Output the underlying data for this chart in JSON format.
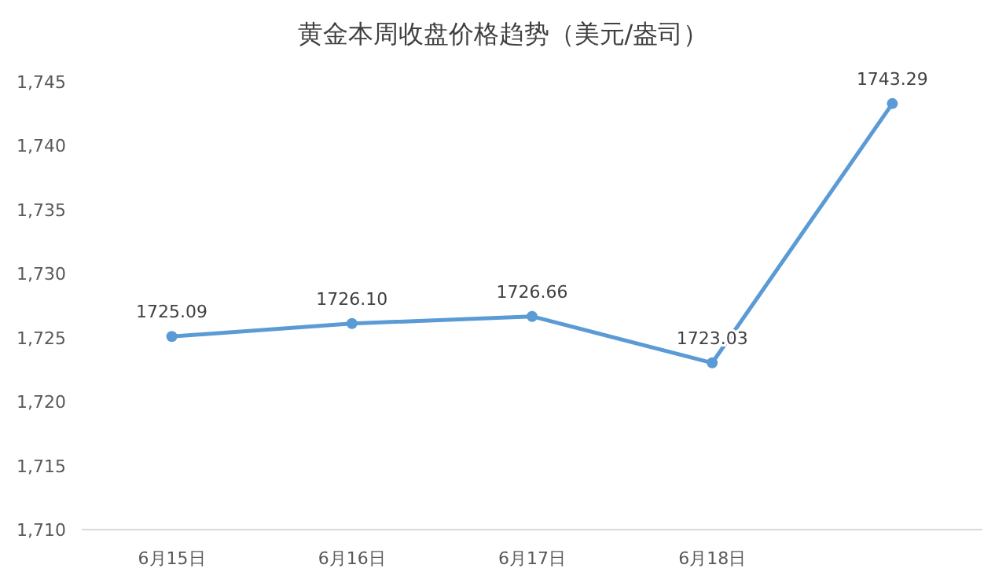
{
  "chart_data": {
    "type": "line",
    "title": "黄金本周收盘价格趋势（美元/盎司）",
    "categories": [
      "6月15日",
      "6月16日",
      "6月17日",
      "6月18日",
      null
    ],
    "series": [
      {
        "color": "#5b9bd5",
        "values": [
          1725.09,
          1726.1,
          1726.66,
          1723.03,
          1743.29
        ]
      }
    ],
    "value_labels": [
      "1725.09",
      "1726.10",
      "1726.66",
      "1723.03",
      "1743.29"
    ],
    "ylim": [
      1710,
      1745
    ],
    "yticks": [
      {
        "value": 1710,
        "label": "1,710"
      },
      {
        "value": 1715,
        "label": "1,715"
      },
      {
        "value": 1720,
        "label": "1,720"
      },
      {
        "value": 1725,
        "label": "1,725"
      },
      {
        "value": 1730,
        "label": "1,730"
      },
      {
        "value": 1735,
        "label": "1,735"
      },
      {
        "value": 1740,
        "label": "1,740"
      },
      {
        "value": 1745,
        "label": "1,745"
      }
    ],
    "marker": "circle",
    "line_style": "solid"
  }
}
